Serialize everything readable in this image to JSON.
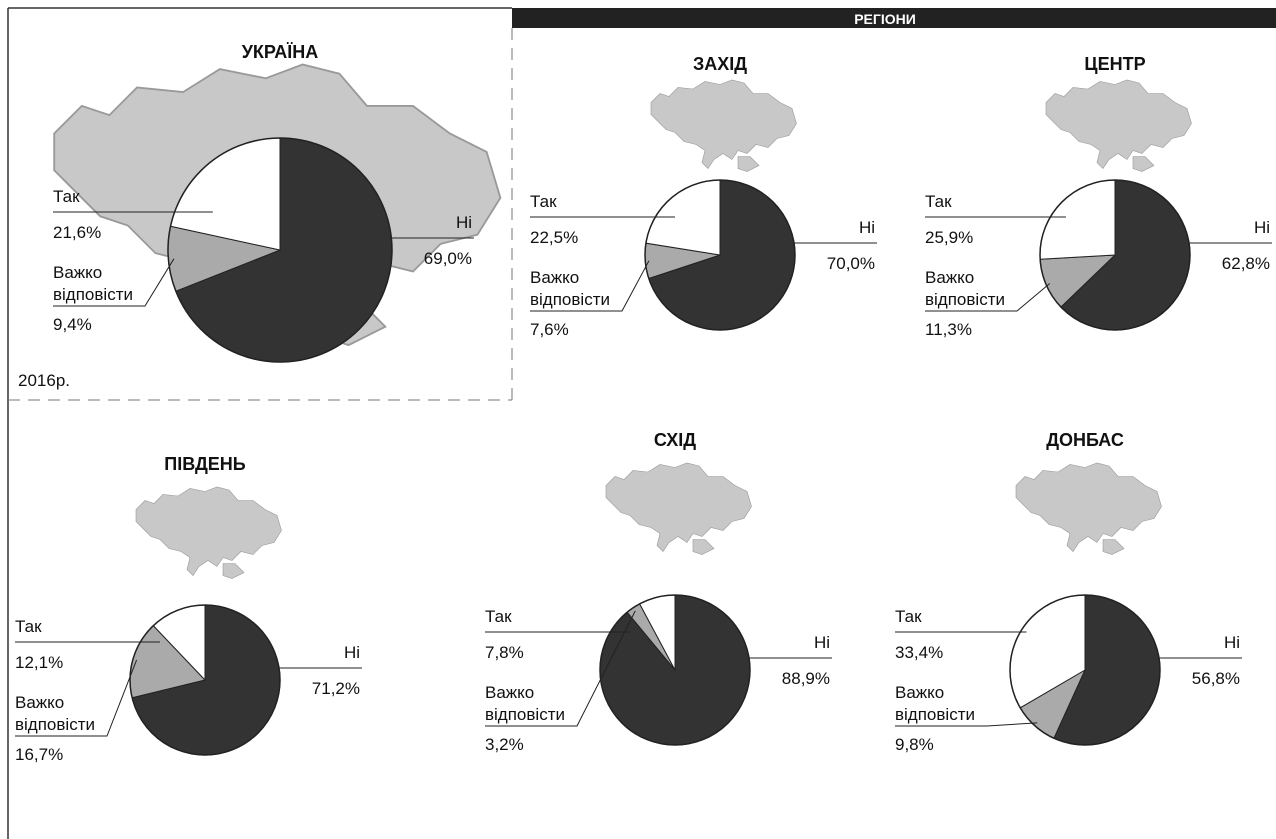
{
  "header": "РЕГІОНИ",
  "note": "2016р.",
  "chart_data": [
    {
      "type": "pie",
      "title": "УКРАЇНА",
      "categories": [
        "Ні",
        "Важко відповісти",
        "Так"
      ],
      "values": [
        69.0,
        9.4,
        21.6
      ],
      "value_labels": [
        "69,0%",
        "9,4%",
        "21,6%"
      ],
      "colors": [
        "#333333",
        "#aaaaaa",
        "#ffffff"
      ]
    },
    {
      "type": "pie",
      "title": "ЗАХІД",
      "categories": [
        "Ні",
        "Важко відповісти",
        "Так"
      ],
      "values": [
        70.0,
        7.6,
        22.5
      ],
      "value_labels": [
        "70,0%",
        "7,6%",
        "22,5%"
      ],
      "colors": [
        "#333333",
        "#aaaaaa",
        "#ffffff"
      ]
    },
    {
      "type": "pie",
      "title": "ЦЕНТР",
      "categories": [
        "Ні",
        "Важко відповісти",
        "Так"
      ],
      "values": [
        62.8,
        11.3,
        25.9
      ],
      "value_labels": [
        "62,8%",
        "11,3%",
        "25,9%"
      ],
      "colors": [
        "#333333",
        "#aaaaaa",
        "#ffffff"
      ]
    },
    {
      "type": "pie",
      "title": "ПІВДЕНЬ",
      "categories": [
        "Ні",
        "Важко відповісти",
        "Так"
      ],
      "values": [
        71.2,
        16.7,
        12.1
      ],
      "value_labels": [
        "71,2%",
        "16,7%",
        "12,1%"
      ],
      "colors": [
        "#333333",
        "#aaaaaa",
        "#ffffff"
      ]
    },
    {
      "type": "pie",
      "title": "СХІД",
      "categories": [
        "Ні",
        "Важко відповісти",
        "Так"
      ],
      "values": [
        88.9,
        3.2,
        7.8
      ],
      "value_labels": [
        "88,9%",
        "3,2%",
        "7,8%"
      ],
      "colors": [
        "#333333",
        "#aaaaaa",
        "#ffffff"
      ]
    },
    {
      "type": "pie",
      "title": "ДОНБАС",
      "categories": [
        "Ні",
        "Важко відповісти",
        "Так"
      ],
      "values": [
        56.8,
        9.8,
        33.4
      ],
      "value_labels": [
        "56,8%",
        "9,8%",
        "33,4%"
      ],
      "colors": [
        "#333333",
        "#aaaaaa",
        "#ffffff"
      ]
    }
  ]
}
